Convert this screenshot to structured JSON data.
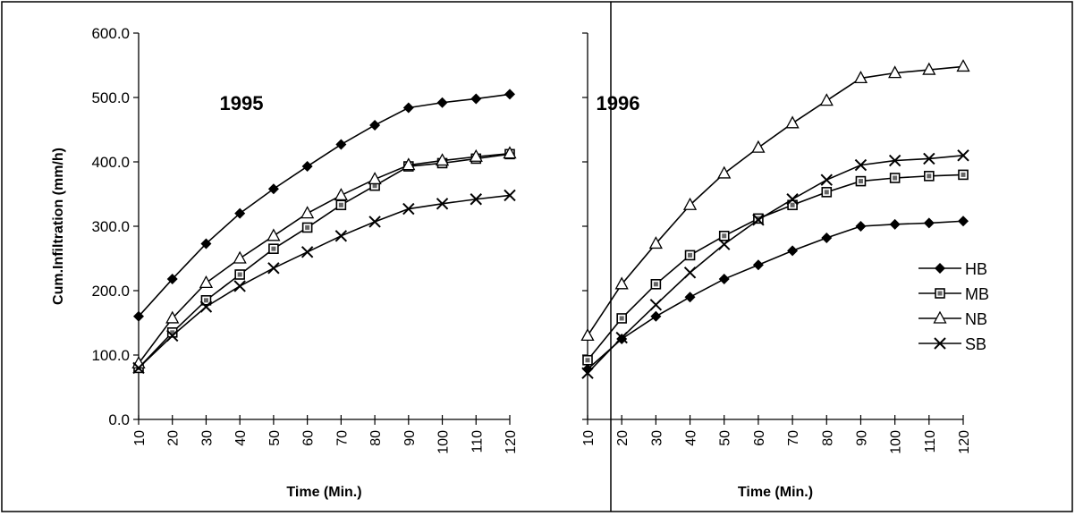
{
  "chart_data": [
    {
      "type": "line",
      "title": "1995",
      "xlabel": "Time (Min.)",
      "ylabel": "Cum.Infiltration (mm/h)",
      "x": [
        10,
        20,
        30,
        40,
        50,
        60,
        70,
        80,
        90,
        100,
        110,
        120
      ],
      "ylim": [
        0,
        600
      ],
      "yticks": [
        "0.0",
        "100.0",
        "200.0",
        "300.0",
        "400.0",
        "500.0",
        "600.0"
      ],
      "grid": false,
      "legend": "none",
      "series": [
        {
          "name": "HB",
          "marker": "diamond",
          "values": [
            160,
            218,
            273,
            320,
            358,
            393,
            427,
            457,
            484,
            492,
            498,
            505
          ]
        },
        {
          "name": "MB",
          "marker": "square",
          "values": [
            80,
            135,
            185,
            225,
            265,
            298,
            333,
            363,
            393,
            398,
            405,
            412
          ]
        },
        {
          "name": "NB",
          "marker": "triangle",
          "values": [
            87,
            157,
            212,
            250,
            285,
            320,
            348,
            373,
            395,
            402,
            408,
            413
          ]
        },
        {
          "name": "SB",
          "marker": "x",
          "values": [
            80,
            130,
            175,
            207,
            235,
            260,
            285,
            307,
            327,
            335,
            342,
            348
          ]
        }
      ]
    },
    {
      "type": "line",
      "title": "1996",
      "xlabel": "Time (Min.)",
      "ylabel": "",
      "x": [
        10,
        20,
        30,
        40,
        50,
        60,
        70,
        80,
        90,
        100,
        110,
        120
      ],
      "ylim": [
        0,
        600
      ],
      "grid": false,
      "legend": "right",
      "series": [
        {
          "name": "HB",
          "marker": "diamond",
          "values": [
            78,
            125,
            160,
            190,
            218,
            240,
            262,
            282,
            300,
            303,
            305,
            308
          ]
        },
        {
          "name": "MB",
          "marker": "square",
          "values": [
            92,
            157,
            210,
            255,
            285,
            312,
            333,
            353,
            370,
            375,
            378,
            380
          ]
        },
        {
          "name": "NB",
          "marker": "triangle",
          "values": [
            130,
            210,
            273,
            333,
            382,
            422,
            460,
            495,
            530,
            538,
            543,
            548
          ]
        },
        {
          "name": "SB",
          "marker": "x",
          "values": [
            72,
            127,
            178,
            228,
            272,
            310,
            342,
            372,
            395,
            402,
            405,
            410
          ]
        }
      ]
    }
  ]
}
